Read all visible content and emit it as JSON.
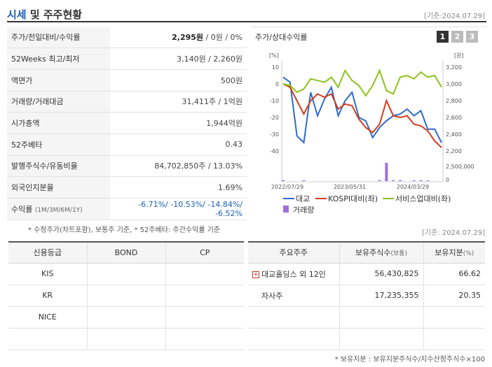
{
  "header": {
    "title_main": "시세",
    "title_rest": " 및 주주현황",
    "date": "[기준:2024.07.29]"
  },
  "price_rows": [
    {
      "label": "주가/전일대비/수익률",
      "value_bold": "2,295원",
      "value_rest": " / 0원 / 0%"
    },
    {
      "label": "52Weeks 최고/최저",
      "value": "3,140원 / 2,260원"
    },
    {
      "label": "액면가",
      "value": "500원"
    },
    {
      "label": "거래량/거래대금",
      "value": "31,411주 / 1억원"
    },
    {
      "label": "시가총액",
      "value": "1,944억원"
    },
    {
      "label": "52주베타",
      "value": "0.43"
    },
    {
      "label": "발행주식수/유동비율",
      "value": "84,702,850주 / 13.03%"
    },
    {
      "label": "외국인지분율",
      "value": "1.69%"
    },
    {
      "label": "수익률",
      "label_small": "(1M/3M/6M/1Y)",
      "value": "-6.71%/ -10.53%/ -14.84%/ -6.52%"
    }
  ],
  "note_left": "* 수정주가(차트포함), 보통주 기준, * 52주베타: 주간수익률 기준",
  "chart": {
    "title": "주가/상대수익률",
    "tabs": [
      "1",
      "2",
      "3"
    ],
    "left_unit": "[%]",
    "right_unit": "[원]",
    "legend": [
      "대교",
      "KOSPI대비(좌)",
      "서비스업대비(좌)",
      "거래량"
    ],
    "colors": {
      "daekyo": "#2e6ad1",
      "kospi": "#d43c1c",
      "service": "#8cc21d",
      "volume": "#a070e0"
    }
  },
  "chart_data": {
    "type": "line",
    "x_ticks": [
      "2022/07/29",
      "2023/05/31",
      "2024/03/29"
    ],
    "y_left_ticks": [
      "10",
      "0",
      "-10",
      "-20",
      "-30",
      "-40"
    ],
    "y_right_ticks": [
      "3,200",
      "3,000",
      "2,800",
      "2,600",
      "2,400",
      "2,200"
    ],
    "volume_ticks": [
      "2,500,000",
      "0"
    ],
    "ylim_left": [
      -40,
      10
    ],
    "series": [
      {
        "name": "대교",
        "values": [
          4,
          1,
          -31,
          -35,
          -5,
          -19,
          -9,
          -2,
          -19,
          -10,
          -5,
          -20,
          -22,
          -32,
          -26,
          -22,
          -19,
          -18,
          -15,
          -19,
          -16,
          -27,
          -27,
          -35
        ]
      },
      {
        "name": "KOSPI대비(좌)",
        "values": [
          0,
          -2,
          -10,
          -18,
          -10,
          -6,
          -8,
          -6,
          -15,
          -12,
          -13,
          -21,
          -26,
          -29,
          -24,
          -10,
          -19,
          -20,
          -19,
          -24,
          -25,
          -28,
          -34,
          -38
        ]
      },
      {
        "name": "서비스업대비(좌)",
        "values": [
          0,
          -1,
          -5,
          -3,
          3,
          2,
          1,
          4,
          -2,
          8,
          2,
          -1,
          -7,
          -1,
          8,
          -4,
          -6,
          4,
          5,
          3,
          7,
          4,
          5,
          -2
        ]
      },
      {
        "name": "거래량",
        "values": [
          0.05,
          0,
          0,
          0.05,
          0,
          0,
          0,
          0,
          0,
          0,
          0,
          0,
          0,
          0,
          0.05,
          1.0,
          0.05,
          0.05,
          0,
          0.02,
          0.05,
          0.02,
          0,
          0
        ]
      }
    ]
  },
  "date_right": "[기준: 2024.07.29]",
  "credit": {
    "headers": [
      "신용등급",
      "BOND",
      "CP"
    ],
    "rows": [
      [
        "KIS",
        "",
        ""
      ],
      [
        "KR",
        "",
        ""
      ],
      [
        "NICE",
        "",
        ""
      ],
      [
        "",
        "",
        ""
      ]
    ]
  },
  "holders": {
    "headers": [
      "주요주주",
      "보유주식수",
      "(보통)",
      "보유지분",
      "(%)"
    ],
    "rows": [
      {
        "name": "대교홀딩스 외 12인",
        "shares": "56,430,825",
        "pct": "66.62",
        "expand": true
      },
      {
        "name": "자사주",
        "shares": "17,235,355",
        "pct": "20.35",
        "expand": false
      },
      {
        "name": "",
        "shares": "",
        "pct": "",
        "expand": false
      },
      {
        "name": "",
        "shares": "",
        "pct": "",
        "expand": false
      }
    ]
  },
  "note_right": "* 보유지분 : 보유지분주식수/지수산정주식수×100"
}
